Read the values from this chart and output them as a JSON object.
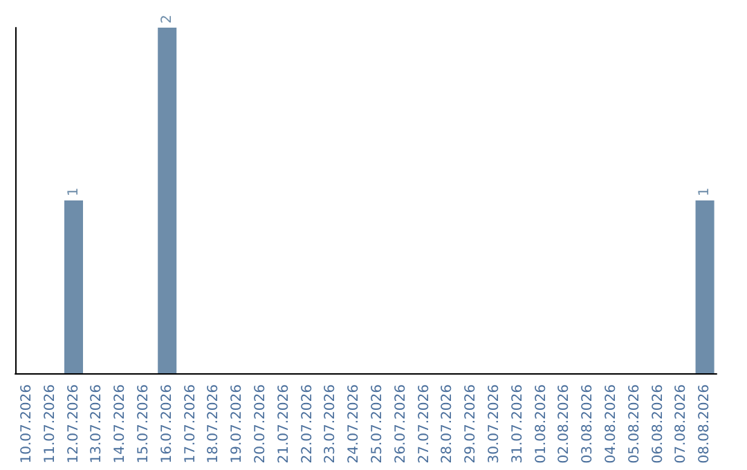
{
  "chart_data": {
    "type": "bar",
    "categories": [
      "10.07.2026",
      "11.07.2026",
      "12.07.2026",
      "13.07.2026",
      "14.07.2026",
      "15.07.2026",
      "16.07.2026",
      "17.07.2026",
      "18.07.2026",
      "19.07.2026",
      "20.07.2026",
      "21.07.2026",
      "22.07.2026",
      "23.07.2026",
      "24.07.2026",
      "25.07.2026",
      "26.07.2026",
      "27.07.2026",
      "28.07.2026",
      "29.07.2026",
      "30.07.2026",
      "31.07.2026",
      "01.08.2026",
      "02.08.2026",
      "03.08.2026",
      "04.08.2026",
      "05.08.2026",
      "06.08.2026",
      "07.08.2026",
      "08.08.2026"
    ],
    "values": [
      0,
      0,
      1,
      0,
      0,
      0,
      2,
      0,
      0,
      0,
      0,
      0,
      0,
      0,
      0,
      0,
      0,
      0,
      0,
      0,
      0,
      0,
      0,
      0,
      0,
      0,
      0,
      0,
      0,
      1
    ],
    "value_labels": [
      null,
      null,
      "1",
      null,
      null,
      null,
      "2",
      null,
      null,
      null,
      null,
      null,
      null,
      null,
      null,
      null,
      null,
      null,
      null,
      null,
      null,
      null,
      null,
      null,
      null,
      null,
      null,
      null,
      null,
      "1"
    ],
    "color": "#6e8daa",
    "tick_labels": "x"
  }
}
